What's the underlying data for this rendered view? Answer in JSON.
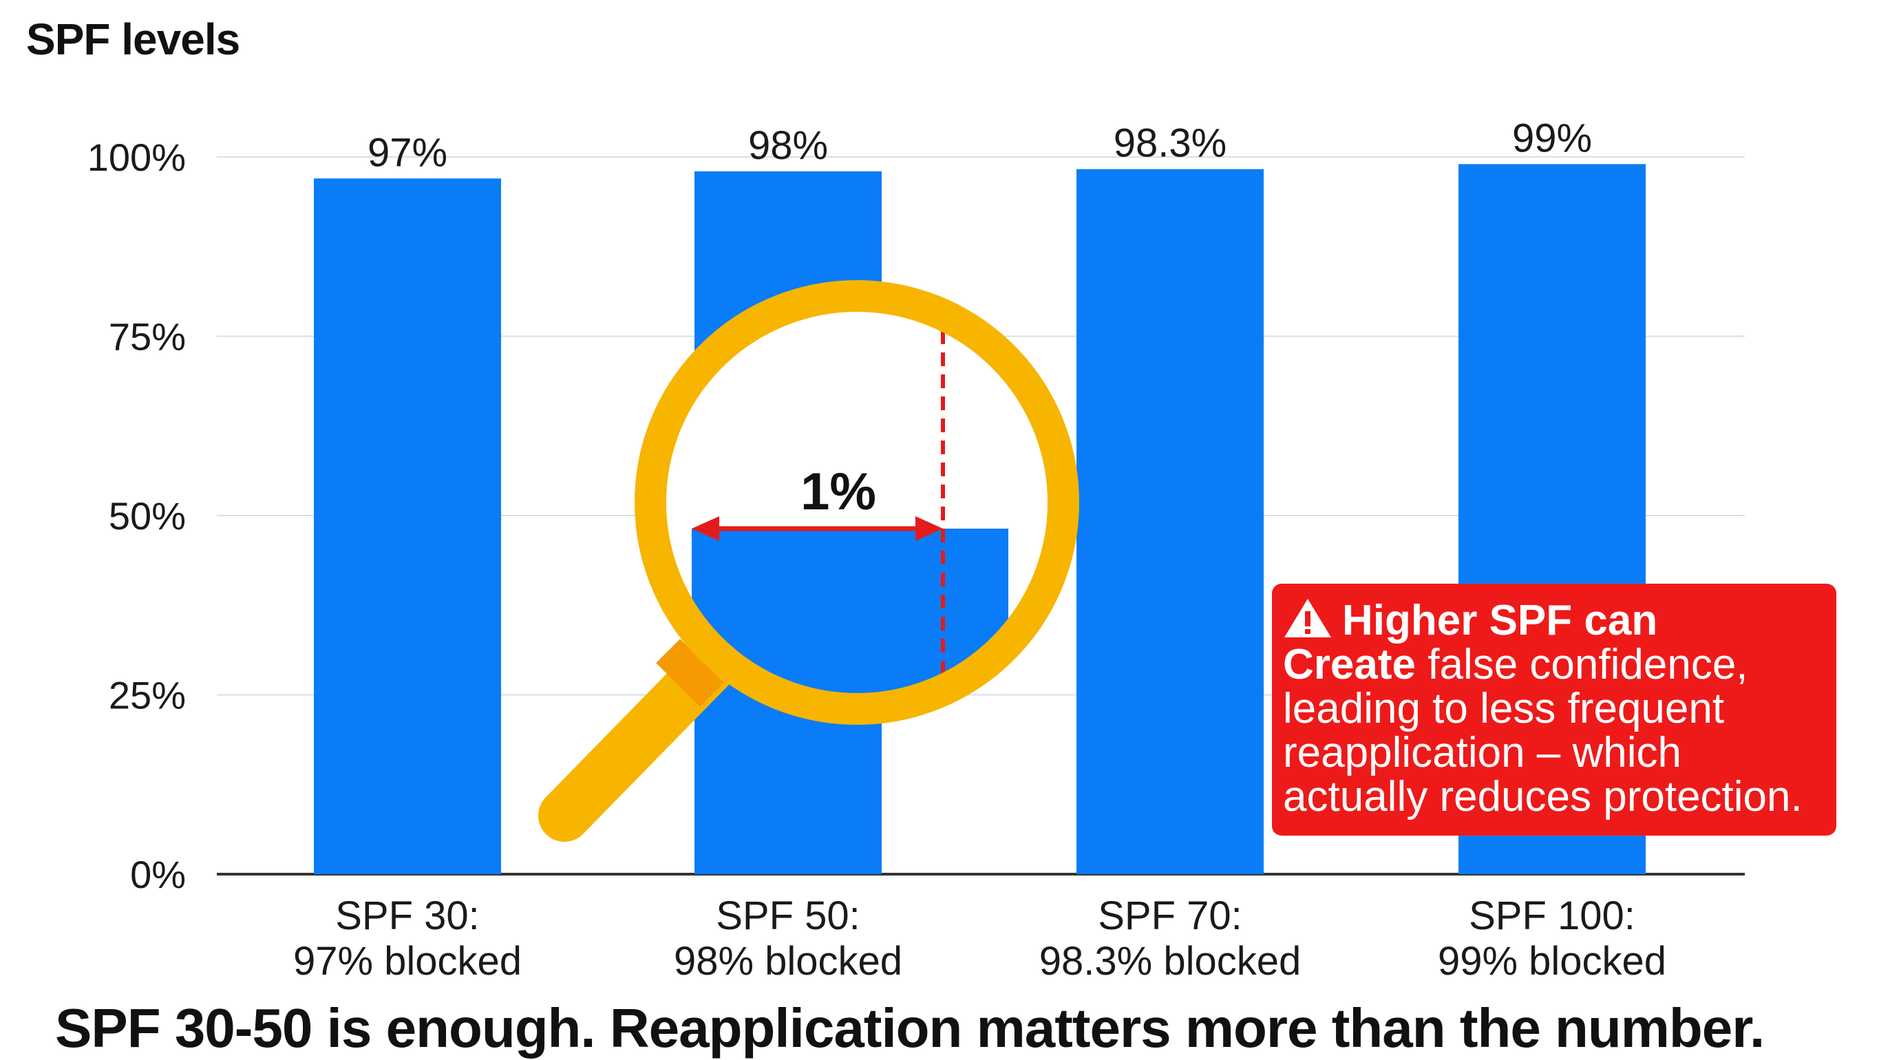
{
  "chart_data": {
    "type": "bar",
    "title": "SPF levels",
    "categories": [
      "SPF 30:\n97% blocked",
      "SPF 50:\n98% blocked",
      "SPF 70:\n98.3% blocked",
      "SPF 100:\n99% blocked"
    ],
    "values": [
      97,
      98,
      98.3,
      99
    ],
    "value_labels": [
      "97%",
      "98%",
      "98.3%",
      "99%"
    ],
    "ylim": [
      0,
      100
    ],
    "yticks": [
      0,
      25,
      50,
      75,
      100
    ],
    "ytick_labels": [
      "0%",
      "25%",
      "50%",
      "75%",
      "100%"
    ],
    "xlabel": "",
    "ylabel": "",
    "grid": true,
    "bar_color": "#0a7cf7",
    "annotations": {
      "magnifier_gap_label": "1%",
      "callout": {
        "emphasis": "Higher SPF can",
        "continuation": "Create",
        "rest": "false confidence, leading to less frequent reapplication – which actually reduces protection."
      }
    }
  },
  "conclusion": "SPF 30-50 is enough. Reapplication matters more than the number.",
  "colors": {
    "bar": "#0a7cf7",
    "magnifier": "#f7b500",
    "arrow": "#e31b1b",
    "callout_bg": "#ee1a1a",
    "grid": "#d8dee8"
  }
}
